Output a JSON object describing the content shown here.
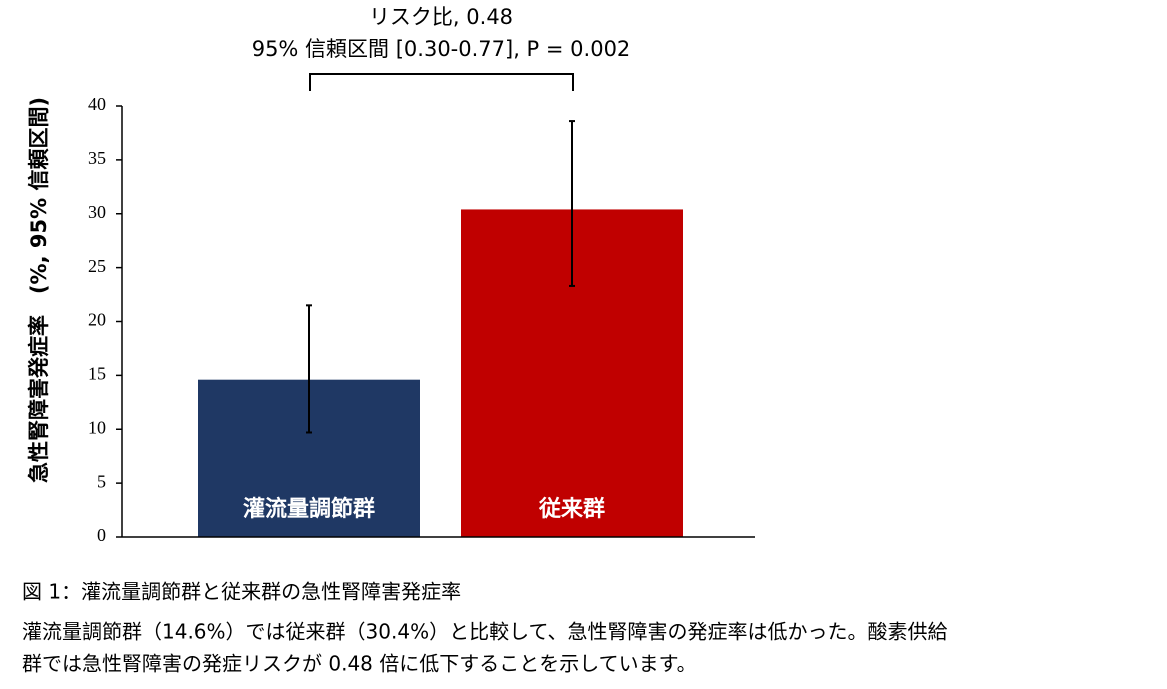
{
  "chart_data": {
    "type": "bar",
    "annotation_lines": [
      "リスク比, 0.48",
      "95% 信頼区間 [0.30-0.77], P = 0.002"
    ],
    "y_label": "急性腎障害発症率　(%, 95% 信頼区間)",
    "categories": [
      "灌流量調節群",
      "従来群"
    ],
    "values": [
      14.6,
      30.4
    ],
    "ci_lower": [
      9.7,
      23.3
    ],
    "ci_upper": [
      21.5,
      38.6
    ],
    "colors": [
      "#1f3864",
      "#c00000"
    ],
    "ylim": [
      0,
      40
    ],
    "yticks": [
      0,
      5,
      10,
      15,
      20,
      25,
      30,
      35,
      40
    ],
    "grid": false
  },
  "caption": {
    "title": "図 1：灌流量調節群と従来群の急性腎障害発症率",
    "lines": [
      "灌流量調節群（14.6%）では従来群（30.4%）と比較して、急性腎障害の発症率は低かった。酸素供給",
      "群では急性腎障害の発症リスクが 0.48 倍に低下することを示しています。"
    ]
  }
}
